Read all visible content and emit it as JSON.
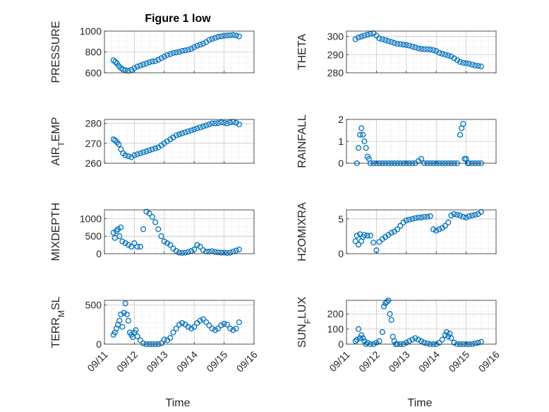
{
  "figure": {
    "title": "Figure 1 low",
    "xlabel": "Time",
    "x_tick_labels": [
      "09/11",
      "09/12",
      "09/13",
      "09/14",
      "09/15",
      "09/16"
    ],
    "marker_color": "#0072BD",
    "grid_color": "#d0d0d0"
  },
  "chart_data": [
    {
      "type": "scatter",
      "ylabel": "PRESSURE",
      "y_ticks": [
        600,
        800,
        1000
      ],
      "ylim": [
        600,
        1000
      ],
      "xlim": [
        "09/11",
        "09/16"
      ],
      "x_days": [
        0.3,
        0.36,
        0.42,
        0.48,
        0.55,
        0.62,
        0.7,
        0.8,
        0.9,
        1.0,
        1.1,
        1.2,
        1.3,
        1.4,
        1.5,
        1.6,
        1.7,
        1.8,
        1.9,
        2.0,
        2.1,
        2.2,
        2.3,
        2.4,
        2.5,
        2.6,
        2.7,
        2.8,
        2.9,
        3.0,
        3.1,
        3.2,
        3.3,
        3.4,
        3.5,
        3.6,
        3.7,
        3.8,
        3.9,
        4.0,
        4.1,
        4.2,
        4.3,
        4.4,
        4.5
      ],
      "values": [
        720,
        705,
        690,
        665,
        645,
        632,
        625,
        618,
        628,
        645,
        660,
        670,
        680,
        690,
        700,
        708,
        712,
        725,
        740,
        755,
        770,
        780,
        790,
        795,
        800,
        810,
        815,
        820,
        830,
        845,
        860,
        870,
        880,
        895,
        915,
        925,
        935,
        945,
        950,
        955,
        958,
        960,
        962,
        958,
        950
      ]
    },
    {
      "type": "scatter",
      "ylabel": "THETA",
      "y_ticks": [
        280,
        290,
        300
      ],
      "ylim": [
        280,
        303
      ],
      "x_days": [
        0.3,
        0.4,
        0.5,
        0.6,
        0.7,
        0.8,
        0.9,
        1.0,
        1.1,
        1.2,
        1.3,
        1.4,
        1.5,
        1.6,
        1.7,
        1.8,
        1.9,
        2.0,
        2.1,
        2.2,
        2.3,
        2.4,
        2.5,
        2.6,
        2.7,
        2.8,
        2.9,
        3.0,
        3.1,
        3.2,
        3.3,
        3.4,
        3.5,
        3.6,
        3.7,
        3.8,
        3.9,
        4.0,
        4.1,
        4.2,
        4.3,
        4.4,
        4.5
      ],
      "values": [
        298.5,
        299.5,
        300,
        300.5,
        301,
        301.5,
        301.8,
        300.5,
        299,
        298.5,
        298,
        297.5,
        297,
        296.5,
        296,
        295.8,
        295.5,
        295.3,
        295,
        294.5,
        294,
        293.5,
        293.2,
        293,
        293,
        292.8,
        292.5,
        292,
        291,
        290.5,
        290,
        289.5,
        289,
        288,
        287,
        286,
        285.5,
        285.3,
        285,
        284.5,
        284,
        283.8,
        283.5
      ]
    },
    {
      "type": "scatter",
      "ylabel": "AIR_TEMP",
      "y_ticks": [
        260,
        270,
        280
      ],
      "ylim": [
        260,
        282
      ],
      "x_days": [
        0.3,
        0.36,
        0.42,
        0.48,
        0.55,
        0.62,
        0.7,
        0.8,
        0.9,
        1.0,
        1.1,
        1.2,
        1.3,
        1.4,
        1.5,
        1.6,
        1.7,
        1.8,
        1.9,
        2.0,
        2.1,
        2.2,
        2.3,
        2.4,
        2.5,
        2.6,
        2.7,
        2.8,
        2.9,
        3.0,
        3.1,
        3.2,
        3.3,
        3.4,
        3.5,
        3.6,
        3.7,
        3.8,
        3.9,
        4.0,
        4.1,
        4.2,
        4.3,
        4.4,
        4.5
      ],
      "values": [
        272,
        271.5,
        270.5,
        269.5,
        267,
        265,
        264,
        263.5,
        263,
        264,
        264.5,
        265,
        265.5,
        266,
        266.5,
        267,
        267.5,
        268,
        269,
        270,
        271,
        272,
        273,
        274,
        274.5,
        275,
        275.5,
        276,
        276.5,
        277,
        277.5,
        278,
        278.5,
        279,
        279.5,
        280,
        280,
        280.2,
        280.5,
        280.3,
        280,
        280.5,
        280.8,
        280.3,
        279.5
      ]
    },
    {
      "type": "scatter",
      "ylabel": "RAINFALL",
      "y_ticks": [
        0,
        1,
        2
      ],
      "ylim": [
        0,
        2
      ],
      "x_days": [
        0.35,
        0.4,
        0.45,
        0.5,
        0.55,
        0.6,
        0.65,
        0.7,
        0.75,
        0.8,
        0.9,
        1.0,
        1.1,
        1.2,
        1.3,
        1.4,
        1.5,
        1.6,
        1.7,
        1.8,
        1.9,
        2.0,
        2.1,
        2.2,
        2.3,
        2.4,
        2.5,
        2.6,
        2.7,
        2.8,
        2.9,
        3.0,
        3.1,
        3.2,
        3.3,
        3.4,
        3.5,
        3.6,
        3.7,
        3.8,
        3.85,
        3.9,
        3.95,
        4.0,
        4.05,
        4.1,
        4.2,
        4.3,
        4.4,
        4.5
      ],
      "values": [
        0,
        0.7,
        1.3,
        1.6,
        1.3,
        1.0,
        0.7,
        0.3,
        0.2,
        0,
        0,
        0,
        0,
        0,
        0,
        0,
        0,
        0,
        0,
        0,
        0,
        0,
        0,
        0,
        0,
        0.1,
        0.2,
        0,
        0,
        0,
        0,
        0,
        0,
        0,
        0,
        0,
        0,
        0,
        0,
        1.3,
        1.6,
        1.8,
        0.2,
        0.2,
        0,
        0,
        0,
        0,
        0,
        0
      ]
    },
    {
      "type": "scatter",
      "ylabel": "MIXDEPTH",
      "y_ticks": [
        0,
        500,
        1000
      ],
      "ylim": [
        0,
        1250
      ],
      "x_days": [
        0.3,
        0.35,
        0.4,
        0.45,
        0.5,
        0.55,
        0.6,
        0.7,
        0.8,
        0.9,
        1.0,
        1.1,
        1.2,
        1.3,
        1.4,
        1.5,
        1.6,
        1.7,
        1.8,
        1.9,
        2.0,
        2.1,
        2.2,
        2.3,
        2.4,
        2.5,
        2.6,
        2.7,
        2.8,
        2.9,
        3.0,
        3.1,
        3.2,
        3.3,
        3.4,
        3.5,
        3.6,
        3.7,
        3.8,
        3.9,
        4.0,
        4.1,
        4.2,
        4.3,
        4.4,
        4.5
      ],
      "values": [
        600,
        450,
        650,
        700,
        500,
        750,
        350,
        300,
        250,
        200,
        300,
        200,
        200,
        700,
        1200,
        1150,
        1050,
        900,
        700,
        500,
        350,
        300,
        250,
        150,
        80,
        30,
        20,
        30,
        50,
        80,
        120,
        250,
        200,
        100,
        60,
        60,
        70,
        50,
        40,
        30,
        30,
        20,
        30,
        60,
        90,
        120
      ]
    },
    {
      "type": "scatter",
      "ylabel": "H2OMIXRA",
      "y_ticks": [
        0,
        5
      ],
      "ylim": [
        0,
        6.3
      ],
      "x_days": [
        0.3,
        0.35,
        0.4,
        0.45,
        0.5,
        0.55,
        0.6,
        0.7,
        0.8,
        0.9,
        1.0,
        1.1,
        1.2,
        1.3,
        1.4,
        1.5,
        1.6,
        1.7,
        1.8,
        1.9,
        2.0,
        2.1,
        2.2,
        2.3,
        2.4,
        2.5,
        2.6,
        2.7,
        2.8,
        2.9,
        3.0,
        3.1,
        3.2,
        3.3,
        3.4,
        3.5,
        3.6,
        3.7,
        3.8,
        3.9,
        4.0,
        4.1,
        4.2,
        4.3,
        4.4,
        4.5
      ],
      "values": [
        1.8,
        2.6,
        1.3,
        2.8,
        1.8,
        2.4,
        2.7,
        2.6,
        2.6,
        1.6,
        0.5,
        1.7,
        2.1,
        2.4,
        2.7,
        3.0,
        3.2,
        3.5,
        4.0,
        4.5,
        4.8,
        4.9,
        5.0,
        5.1,
        5.2,
        5.2,
        5.3,
        5.3,
        5.4,
        3.5,
        3.3,
        3.5,
        3.7,
        4.0,
        4.5,
        5.5,
        5.7,
        5.6,
        5.5,
        5.3,
        5.2,
        5.4,
        5.5,
        5.6,
        5.7,
        6.0
      ]
    },
    {
      "type": "scatter",
      "ylabel": "TERR_MSL",
      "y_ticks": [
        0,
        500
      ],
      "ylim": [
        0,
        560
      ],
      "x_days": [
        0.3,
        0.35,
        0.4,
        0.45,
        0.5,
        0.55,
        0.6,
        0.65,
        0.7,
        0.75,
        0.8,
        0.85,
        0.9,
        0.95,
        1.0,
        1.05,
        1.1,
        1.2,
        1.3,
        1.4,
        1.5,
        1.6,
        1.7,
        1.8,
        1.9,
        2.0,
        2.1,
        2.2,
        2.3,
        2.4,
        2.5,
        2.6,
        2.7,
        2.8,
        2.9,
        3.0,
        3.1,
        3.2,
        3.3,
        3.4,
        3.5,
        3.6,
        3.7,
        3.8,
        3.9,
        4.0,
        4.1,
        4.2,
        4.3,
        4.4,
        4.5
      ],
      "values": [
        120,
        150,
        200,
        250,
        300,
        380,
        220,
        400,
        520,
        380,
        300,
        150,
        120,
        90,
        150,
        180,
        100,
        50,
        10,
        0,
        0,
        0,
        0,
        0,
        10,
        60,
        50,
        80,
        150,
        200,
        250,
        270,
        250,
        220,
        200,
        220,
        270,
        300,
        320,
        280,
        240,
        200,
        180,
        200,
        240,
        260,
        250,
        200,
        180,
        200,
        280
      ]
    },
    {
      "type": "scatter",
      "ylabel": "SUN_FLUX",
      "y_ticks": [
        0,
        100,
        200
      ],
      "ylim": [
        0,
        290
      ],
      "x_days": [
        0.3,
        0.35,
        0.4,
        0.45,
        0.5,
        0.55,
        0.6,
        0.65,
        0.7,
        0.8,
        0.9,
        1.0,
        1.1,
        1.2,
        1.25,
        1.3,
        1.35,
        1.4,
        1.45,
        1.5,
        1.55,
        1.6,
        1.65,
        1.7,
        1.8,
        1.9,
        2.0,
        2.1,
        2.2,
        2.3,
        2.4,
        2.5,
        2.6,
        2.7,
        2.8,
        2.9,
        3.0,
        3.1,
        3.2,
        3.3,
        3.35,
        3.4,
        3.45,
        3.5,
        3.6,
        3.7,
        3.8,
        3.9,
        4.0,
        4.1,
        4.2,
        4.3,
        4.4,
        4.5
      ],
      "values": [
        20,
        30,
        100,
        40,
        60,
        40,
        20,
        0,
        10,
        0,
        0,
        10,
        20,
        80,
        250,
        270,
        280,
        290,
        200,
        160,
        50,
        20,
        0,
        0,
        0,
        0,
        10,
        20,
        30,
        40,
        30,
        20,
        10,
        5,
        0,
        0,
        0,
        10,
        30,
        60,
        80,
        50,
        70,
        40,
        10,
        0,
        0,
        0,
        0,
        0,
        0,
        5,
        10,
        15
      ]
    }
  ]
}
